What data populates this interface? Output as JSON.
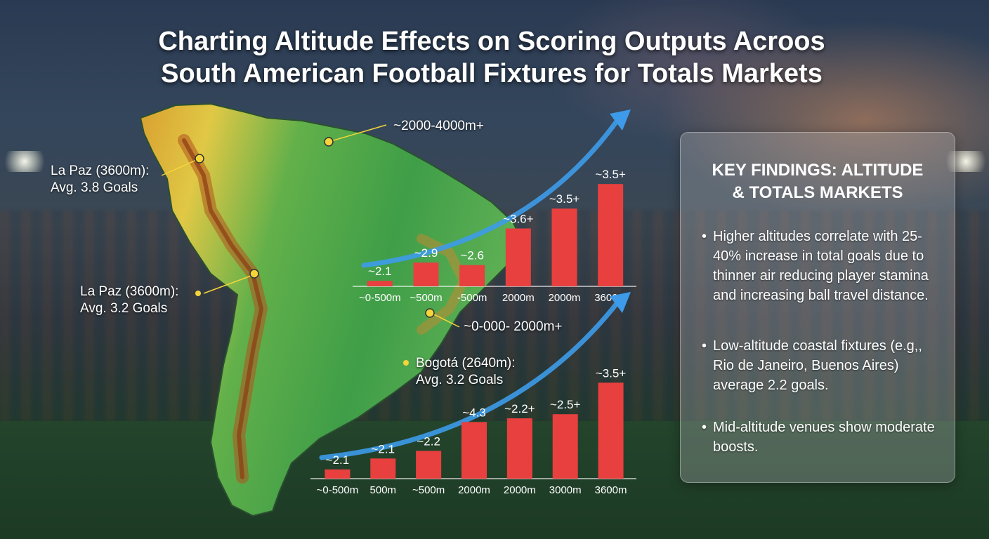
{
  "title": "Charting Altitude Effects on Scoring Outputs Acroos\nSouth American Football Fixtures for Totals Markets",
  "map_labels": {
    "la_paz_top": "La Paz (3600m):\nAvg. 3.8 Goals",
    "range_top": "~2000-4000m+",
    "la_paz_mid": "La Paz (3600m):\nAvg. 3.2 Goals",
    "range_mid": "~0-000- 2000m+",
    "bogota": "Bogotá (2640m):\nAvg. 3.2 Goals"
  },
  "colors": {
    "bar": "#e8403f",
    "arrow": "#3d9be9",
    "marker": "#f5d53a"
  },
  "chart_data": [
    {
      "type": "bar",
      "categories": [
        "~0-500m",
        "~500m",
        "-500m",
        "2000m",
        "2000m",
        "3600m"
      ],
      "values": [
        2.1,
        2.9,
        2.6,
        3.6,
        3.5,
        3.5
      ],
      "data_labels": [
        "~2.1",
        "~2.9",
        "~2.6",
        "~3.6+",
        "~3.5+",
        "~3.5+"
      ],
      "trend_arrow": "up"
    },
    {
      "type": "bar",
      "categories": [
        "~0-500m",
        "500m",
        "~500m",
        "2000m",
        "2000m",
        "3000m",
        "3600m"
      ],
      "values": [
        2.1,
        2.1,
        2.2,
        4.3,
        2.2,
        2.5,
        3.5
      ],
      "data_labels": [
        "~2.1",
        "~2.1",
        "~2.2",
        "~4.3",
        "~2.2+",
        "~2.5+",
        "~3.5+"
      ],
      "trend_arrow": "up"
    }
  ],
  "panel": {
    "heading": "KEY FINDINGS: ALTITUDE\n& TOTALS MARKETS",
    "bullet_symbol": "•",
    "bullets": [
      "Higher altitudes correlate with 25-40% increase in total goals due to thinner air reducing player stamina and increasing ball travel distance.",
      "Low-altitude coastal fixtures (e.g,, Rio de Janeiro, Buenos Aires) average 2.2 goals.",
      "Mid-altitude venues show moderate boosts."
    ]
  }
}
